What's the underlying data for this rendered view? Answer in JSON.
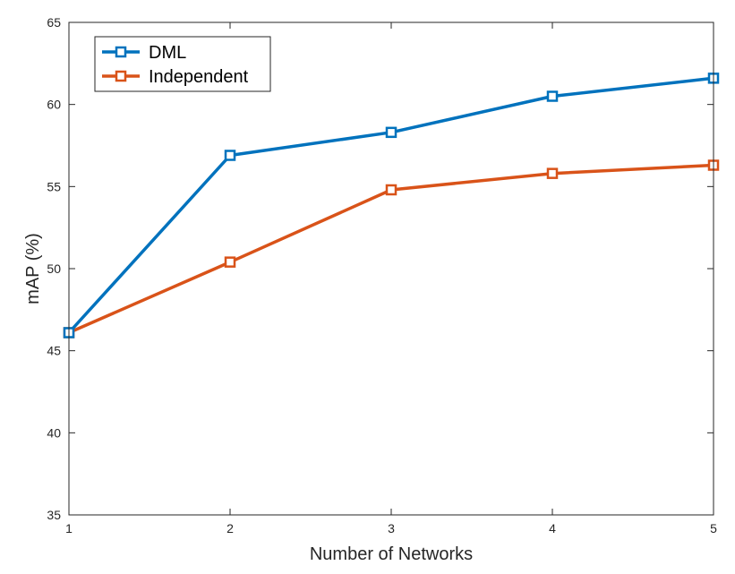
{
  "chart_data": {
    "type": "line",
    "xlabel": "Number of Networks",
    "ylabel": "mAP (%)",
    "x": [
      1,
      2,
      3,
      4,
      5
    ],
    "xticks": [
      "1",
      "2",
      "3",
      "4",
      "5"
    ],
    "yticks": [
      "35",
      "40",
      "45",
      "50",
      "55",
      "60",
      "65"
    ],
    "xlim": [
      1,
      5
    ],
    "ylim": [
      35,
      65
    ],
    "grid": false,
    "legend_position": "top-left",
    "series": [
      {
        "name": "DML",
        "color": "#0072BD",
        "marker": "square",
        "values": [
          46.1,
          56.9,
          58.3,
          60.5,
          61.6
        ]
      },
      {
        "name": "Independent",
        "color": "#D95319",
        "marker": "square",
        "values": [
          46.1,
          50.4,
          54.8,
          55.8,
          56.3
        ]
      }
    ]
  }
}
